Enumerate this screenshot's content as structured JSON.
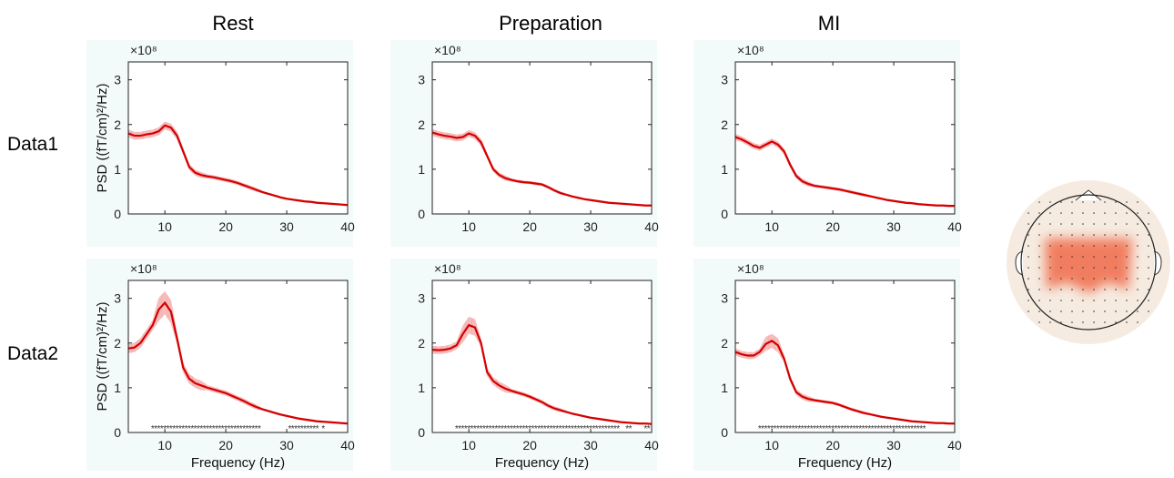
{
  "columns": [
    "Rest",
    "Preparation",
    "MI"
  ],
  "rows": [
    "Data1",
    "Data2"
  ],
  "chart_data": [
    {
      "type": "line",
      "color": "#d40000",
      "band_color": "#f3a0a0",
      "x": [
        4,
        5,
        6,
        7,
        8,
        9,
        10,
        11,
        12,
        13,
        14,
        15,
        16,
        17,
        18,
        19,
        20,
        21,
        22,
        23,
        24,
        25,
        26,
        27,
        28,
        29,
        30,
        31,
        32,
        33,
        34,
        35,
        36,
        37,
        38,
        39,
        40
      ],
      "values": [
        1.8,
        1.75,
        1.75,
        1.78,
        1.8,
        1.85,
        1.98,
        1.93,
        1.75,
        1.4,
        1.05,
        0.92,
        0.87,
        0.84,
        0.82,
        0.79,
        0.76,
        0.73,
        0.69,
        0.64,
        0.59,
        0.54,
        0.49,
        0.45,
        0.41,
        0.37,
        0.34,
        0.32,
        0.3,
        0.28,
        0.27,
        0.25,
        0.24,
        0.23,
        0.22,
        0.21,
        0.2
      ],
      "errors": [
        0.08,
        0.08,
        0.08,
        0.08,
        0.08,
        0.08,
        0.08,
        0.08,
        0.08,
        0.06,
        0.06,
        0.06,
        0.06,
        0.04,
        0.04,
        0.04,
        0.04,
        0.04,
        0.04,
        0.04,
        0.04,
        0.04,
        0.02,
        0.02,
        0.02,
        0.02,
        0.02,
        0.02,
        0.02,
        0.02,
        0.02,
        0.02,
        0.02,
        0.02,
        0.02,
        0.02,
        0.02
      ],
      "xlim": [
        4,
        40
      ],
      "xticks": [
        10,
        20,
        30,
        40
      ],
      "ylim": [
        0,
        3.4
      ],
      "yticks": [
        0,
        1,
        2,
        3
      ],
      "y_multiplier": "×10⁸",
      "ylabel": "PSD ((fT/cm)²/Hz)"
    },
    {
      "type": "line",
      "color": "#d40000",
      "band_color": "#f3a0a0",
      "x": [
        4,
        5,
        6,
        7,
        8,
        9,
        10,
        11,
        12,
        13,
        14,
        15,
        16,
        17,
        18,
        19,
        20,
        21,
        22,
        23,
        24,
        25,
        26,
        27,
        28,
        29,
        30,
        31,
        32,
        33,
        34,
        35,
        36,
        37,
        38,
        39,
        40
      ],
      "values": [
        1.82,
        1.78,
        1.75,
        1.73,
        1.7,
        1.72,
        1.8,
        1.75,
        1.6,
        1.3,
        1.0,
        0.87,
        0.8,
        0.76,
        0.73,
        0.71,
        0.7,
        0.68,
        0.66,
        0.6,
        0.53,
        0.47,
        0.43,
        0.39,
        0.36,
        0.33,
        0.31,
        0.29,
        0.27,
        0.25,
        0.24,
        0.23,
        0.22,
        0.21,
        0.2,
        0.19,
        0.19
      ],
      "errors": [
        0.07,
        0.07,
        0.07,
        0.07,
        0.07,
        0.07,
        0.07,
        0.07,
        0.07,
        0.05,
        0.05,
        0.05,
        0.05,
        0.03,
        0.03,
        0.03,
        0.03,
        0.03,
        0.03,
        0.03,
        0.03,
        0.03,
        0.02,
        0.02,
        0.02,
        0.02,
        0.02,
        0.02,
        0.02,
        0.02,
        0.02,
        0.02,
        0.02,
        0.02,
        0.02,
        0.02,
        0.02
      ],
      "xlim": [
        4,
        40
      ],
      "xticks": [
        10,
        20,
        30,
        40
      ],
      "ylim": [
        0,
        3.4
      ],
      "yticks": [
        0,
        1,
        2,
        3
      ],
      "y_multiplier": "×10⁸"
    },
    {
      "type": "line",
      "color": "#d40000",
      "band_color": "#f3a0a0",
      "x": [
        4,
        5,
        6,
        7,
        8,
        9,
        10,
        11,
        12,
        13,
        14,
        15,
        16,
        17,
        18,
        19,
        20,
        21,
        22,
        23,
        24,
        25,
        26,
        27,
        28,
        29,
        30,
        31,
        32,
        33,
        34,
        35,
        36,
        37,
        38,
        39,
        40
      ],
      "values": [
        1.72,
        1.67,
        1.6,
        1.52,
        1.48,
        1.55,
        1.62,
        1.55,
        1.4,
        1.1,
        0.85,
        0.73,
        0.67,
        0.63,
        0.61,
        0.59,
        0.57,
        0.55,
        0.52,
        0.49,
        0.46,
        0.43,
        0.4,
        0.37,
        0.34,
        0.31,
        0.29,
        0.27,
        0.25,
        0.24,
        0.22,
        0.21,
        0.2,
        0.19,
        0.19,
        0.18,
        0.18
      ],
      "errors": [
        0.06,
        0.06,
        0.06,
        0.06,
        0.06,
        0.06,
        0.06,
        0.06,
        0.06,
        0.05,
        0.05,
        0.05,
        0.05,
        0.03,
        0.03,
        0.03,
        0.03,
        0.03,
        0.03,
        0.03,
        0.03,
        0.03,
        0.02,
        0.02,
        0.02,
        0.02,
        0.02,
        0.02,
        0.02,
        0.02,
        0.02,
        0.02,
        0.02,
        0.02,
        0.02,
        0.02,
        0.02
      ],
      "xlim": [
        4,
        40
      ],
      "xticks": [
        10,
        20,
        30,
        40
      ],
      "ylim": [
        0,
        3.4
      ],
      "yticks": [
        0,
        1,
        2,
        3
      ],
      "y_multiplier": "×10⁸"
    },
    {
      "type": "line",
      "color": "#d40000",
      "band_color": "#f3a0a0",
      "x": [
        4,
        5,
        6,
        7,
        8,
        9,
        10,
        11,
        12,
        13,
        14,
        15,
        16,
        17,
        18,
        19,
        20,
        21,
        22,
        23,
        24,
        25,
        26,
        27,
        28,
        29,
        30,
        31,
        32,
        33,
        34,
        35,
        36,
        37,
        38,
        39,
        40
      ],
      "values": [
        1.88,
        1.9,
        2.0,
        2.2,
        2.4,
        2.75,
        2.9,
        2.7,
        2.1,
        1.45,
        1.2,
        1.1,
        1.05,
        1.0,
        0.96,
        0.92,
        0.88,
        0.82,
        0.76,
        0.7,
        0.63,
        0.57,
        0.52,
        0.48,
        0.44,
        0.4,
        0.37,
        0.34,
        0.31,
        0.29,
        0.27,
        0.25,
        0.24,
        0.23,
        0.22,
        0.21,
        0.2
      ],
      "errors": [
        0.1,
        0.1,
        0.1,
        0.1,
        0.1,
        0.25,
        0.25,
        0.25,
        0.1,
        0.1,
        0.1,
        0.1,
        0.1,
        0.05,
        0.05,
        0.05,
        0.05,
        0.05,
        0.05,
        0.05,
        0.05,
        0.05,
        0.02,
        0.02,
        0.02,
        0.02,
        0.02,
        0.02,
        0.02,
        0.02,
        0.02,
        0.02,
        0.02,
        0.02,
        0.02,
        0.02,
        0.02
      ],
      "xlim": [
        4,
        40
      ],
      "xticks": [
        10,
        20,
        30,
        40
      ],
      "ylim": [
        0,
        3.4
      ],
      "yticks": [
        0,
        1,
        2,
        3
      ],
      "y_multiplier": "×10⁸",
      "ylabel": "PSD ((fT/cm)²/Hz)",
      "xlabel": "Frequency (Hz)",
      "significant_x": [
        8,
        8.5,
        9,
        9.5,
        10,
        10.5,
        11,
        11.5,
        12,
        12.5,
        13,
        13.5,
        14,
        14.5,
        15,
        15.5,
        16,
        16.5,
        17,
        17.5,
        18,
        18.5,
        19,
        19.5,
        20,
        20.5,
        21,
        21.5,
        22,
        22.5,
        23,
        23.5,
        24,
        24.5,
        25,
        25.5,
        30.5,
        31,
        31.5,
        32,
        32.5,
        33,
        33.5,
        34,
        34.5,
        35,
        36
      ]
    },
    {
      "type": "line",
      "color": "#d40000",
      "band_color": "#f3a0a0",
      "x": [
        4,
        5,
        6,
        7,
        8,
        9,
        10,
        11,
        12,
        13,
        14,
        15,
        16,
        17,
        18,
        19,
        20,
        21,
        22,
        23,
        24,
        25,
        26,
        27,
        28,
        29,
        30,
        31,
        32,
        33,
        34,
        35,
        36,
        37,
        38,
        39,
        40
      ],
      "values": [
        1.85,
        1.84,
        1.85,
        1.88,
        1.95,
        2.2,
        2.4,
        2.35,
        2.0,
        1.35,
        1.15,
        1.05,
        0.98,
        0.93,
        0.89,
        0.85,
        0.8,
        0.74,
        0.68,
        0.6,
        0.54,
        0.5,
        0.46,
        0.42,
        0.39,
        0.36,
        0.33,
        0.31,
        0.29,
        0.27,
        0.25,
        0.23,
        0.22,
        0.21,
        0.2,
        0.2,
        0.19
      ],
      "errors": [
        0.08,
        0.08,
        0.08,
        0.08,
        0.08,
        0.18,
        0.18,
        0.18,
        0.08,
        0.08,
        0.08,
        0.08,
        0.08,
        0.04,
        0.04,
        0.04,
        0.04,
        0.04,
        0.04,
        0.04,
        0.04,
        0.04,
        0.02,
        0.02,
        0.02,
        0.02,
        0.02,
        0.02,
        0.02,
        0.02,
        0.02,
        0.02,
        0.02,
        0.02,
        0.02,
        0.02,
        0.02
      ],
      "xlim": [
        4,
        40
      ],
      "xticks": [
        10,
        20,
        30,
        40
      ],
      "ylim": [
        0,
        3.4
      ],
      "yticks": [
        0,
        1,
        2,
        3
      ],
      "y_multiplier": "×10⁸",
      "xlabel": "Frequency (Hz)",
      "significant_x": [
        8,
        8.5,
        9,
        9.5,
        10,
        10.5,
        11,
        11.5,
        12,
        12.5,
        13,
        13.5,
        14,
        14.5,
        15,
        15.5,
        16,
        16.5,
        17,
        17.5,
        18,
        18.5,
        19,
        19.5,
        20,
        20.5,
        21,
        21.5,
        22,
        22.5,
        23,
        23.5,
        24,
        24.5,
        25,
        25.5,
        26,
        26.5,
        27,
        27.5,
        28,
        28.5,
        29,
        29.5,
        30,
        30.5,
        31,
        31.5,
        32,
        32.5,
        33,
        33.5,
        34,
        34.5,
        36,
        36.5,
        39,
        39.5
      ]
    },
    {
      "type": "line",
      "color": "#d40000",
      "band_color": "#f3a0a0",
      "x": [
        4,
        5,
        6,
        7,
        8,
        9,
        10,
        11,
        12,
        13,
        14,
        15,
        16,
        17,
        18,
        19,
        20,
        21,
        22,
        23,
        24,
        25,
        26,
        27,
        28,
        29,
        30,
        31,
        32,
        33,
        34,
        35,
        36,
        37,
        38,
        39,
        40
      ],
      "values": [
        1.8,
        1.75,
        1.72,
        1.72,
        1.8,
        1.98,
        2.05,
        1.95,
        1.65,
        1.2,
        0.9,
        0.8,
        0.75,
        0.72,
        0.7,
        0.68,
        0.66,
        0.62,
        0.57,
        0.52,
        0.48,
        0.44,
        0.41,
        0.38,
        0.35,
        0.33,
        0.31,
        0.29,
        0.27,
        0.25,
        0.24,
        0.23,
        0.22,
        0.21,
        0.21,
        0.2,
        0.2
      ],
      "errors": [
        0.07,
        0.07,
        0.07,
        0.07,
        0.07,
        0.15,
        0.15,
        0.15,
        0.07,
        0.06,
        0.06,
        0.06,
        0.06,
        0.03,
        0.03,
        0.03,
        0.03,
        0.03,
        0.03,
        0.03,
        0.03,
        0.03,
        0.02,
        0.02,
        0.02,
        0.02,
        0.02,
        0.02,
        0.02,
        0.02,
        0.02,
        0.02,
        0.02,
        0.02,
        0.02,
        0.02,
        0.02
      ],
      "xlim": [
        4,
        40
      ],
      "xticks": [
        10,
        20,
        30,
        40
      ],
      "ylim": [
        0,
        3.4
      ],
      "yticks": [
        0,
        1,
        2,
        3
      ],
      "y_multiplier": "×10⁸",
      "xlabel": "Frequency (Hz)",
      "significant_x": [
        8,
        8.5,
        9,
        9.5,
        10,
        10.5,
        11,
        11.5,
        12,
        12.5,
        13,
        13.5,
        14,
        14.5,
        15,
        15.5,
        16,
        16.5,
        17,
        17.5,
        18,
        18.5,
        19,
        19.5,
        20,
        20.5,
        21,
        21.5,
        22,
        22.5,
        23,
        23.5,
        24,
        24.5,
        25,
        25.5,
        26,
        26.5,
        27,
        27.5,
        28,
        28.5,
        29,
        29.5,
        30,
        30.5,
        31,
        31.5,
        32,
        32.5,
        33,
        33.5,
        34,
        34.5,
        35
      ]
    }
  ]
}
